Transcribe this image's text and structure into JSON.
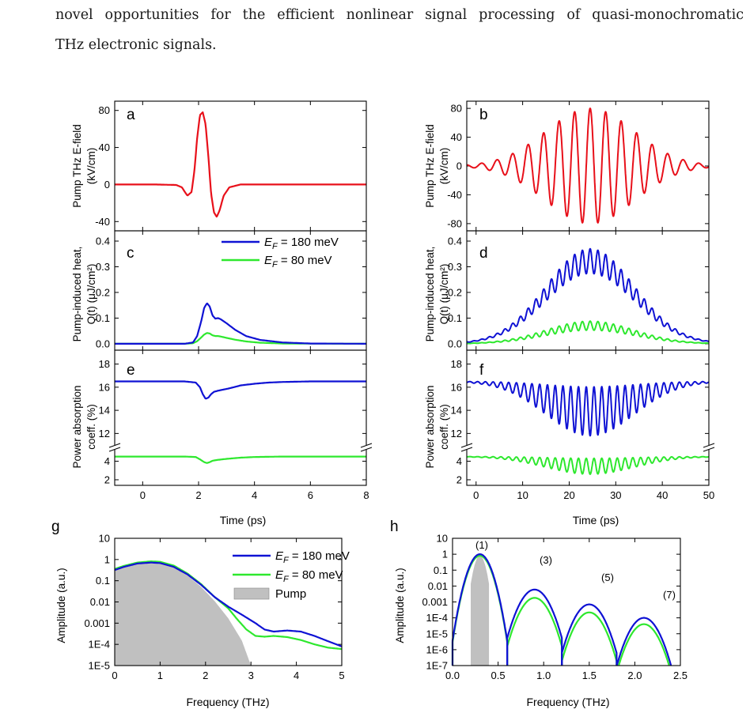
{
  "paper": {
    "line1": "novel opportunities for the efficient nonlinear signal processing of quasi-monochromatic",
    "line2": "THz electronic signals."
  },
  "colors": {
    "pump": "#e8101a",
    "ef180": "#0f12d4",
    "ef80": "#2ee82e",
    "pump_spectrum": "#c0c0c0"
  },
  "chart_data": [
    {
      "panel": "a",
      "type": "line",
      "xlabel": "",
      "ylabel": "Pump THz E-field (kV/cm)",
      "xlim": [
        -1,
        8
      ],
      "ylim": [
        -50,
        90
      ],
      "yticks": [
        80,
        40,
        0,
        -40
      ],
      "series": [
        {
          "color": "#e8101a",
          "x": [
            -1,
            0.5,
            1.2,
            1.4,
            1.6,
            1.75,
            1.85,
            1.95,
            2.05,
            2.15,
            2.25,
            2.35,
            2.45,
            2.55,
            2.65,
            2.75,
            2.9,
            3.1,
            3.5,
            8
          ],
          "y": [
            0,
            0,
            -0.5,
            -3,
            -12,
            -8,
            15,
            50,
            75,
            78,
            65,
            30,
            -10,
            -30,
            -35,
            -28,
            -12,
            -3,
            0,
            0
          ]
        }
      ]
    },
    {
      "panel": "b",
      "type": "line",
      "xlabel": "",
      "ylabel": "Pump THz E-field (kV/cm)",
      "xlim": [
        -2,
        50
      ],
      "ylim": [
        -90,
        90
      ],
      "yticks": [
        80,
        40,
        0,
        -40,
        -80
      ],
      "carrier_period_ps": 3.333,
      "envelope_peak_kVcm": 80,
      "envelope_center_ps": 24.5,
      "envelope_sigma_ps": 9.5,
      "series": [
        {
          "color": "#e8101a"
        }
      ]
    },
    {
      "panel": "c",
      "type": "line",
      "xlabel": "",
      "ylabel": "Pump-induced heat, Q(t) (μJ/cm²)",
      "xlim": [
        -1,
        8
      ],
      "ylim": [
        -0.025,
        0.44
      ],
      "yticks": [
        0.4,
        0.3,
        0.2,
        0.1,
        0.0
      ],
      "legend": [
        "E_F = 180 meV",
        "E_F = 80 meV"
      ],
      "series": [
        {
          "name": "E_F = 180 meV",
          "color": "#0f12d4",
          "x": [
            -1,
            1.5,
            1.8,
            1.95,
            2.1,
            2.2,
            2.3,
            2.4,
            2.5,
            2.6,
            2.7,
            2.8,
            3.0,
            3.3,
            3.7,
            4.2,
            5.0,
            6.0,
            8
          ],
          "y": [
            0,
            0,
            0.005,
            0.03,
            0.09,
            0.14,
            0.158,
            0.145,
            0.11,
            0.098,
            0.1,
            0.095,
            0.08,
            0.055,
            0.03,
            0.015,
            0.005,
            0.001,
            0
          ]
        },
        {
          "name": "E_F = 80 meV",
          "color": "#2ee82e",
          "x": [
            -1,
            1.5,
            1.8,
            1.95,
            2.1,
            2.2,
            2.3,
            2.4,
            2.5,
            2.6,
            2.7,
            2.8,
            3.0,
            3.3,
            3.7,
            4.2,
            5.0,
            8
          ],
          "y": [
            0,
            0,
            0.002,
            0.01,
            0.025,
            0.036,
            0.042,
            0.04,
            0.033,
            0.03,
            0.03,
            0.028,
            0.023,
            0.016,
            0.009,
            0.004,
            0.001,
            0
          ]
        }
      ]
    },
    {
      "panel": "d",
      "type": "line",
      "xlabel": "",
      "ylabel": "Pump-induced heat, Q(t) (μJ/cm²)",
      "xlim": [
        -2,
        50
      ],
      "ylim": [
        -0.025,
        0.44
      ],
      "yticks": [
        0.4,
        0.3,
        0.2,
        0.1,
        0.0
      ],
      "series": [
        {
          "name": "E_F = 180 meV",
          "color": "#0f12d4",
          "peak": 0.37,
          "base_fraction": 0.87,
          "ripple_period_ps": 1.667
        },
        {
          "name": "E_F = 80 meV",
          "color": "#2ee82e",
          "peak": 0.088,
          "base_fraction": 0.8,
          "ripple_period_ps": 1.667
        }
      ]
    },
    {
      "panel": "e",
      "type": "line",
      "xlabel": "Time (ps)",
      "ylabel": "Power absorption coeff. (%)",
      "xlim": [
        -1,
        8
      ],
      "broken_axis": true,
      "yticks": [
        18,
        16,
        14,
        12,
        4,
        2
      ],
      "xticks": [
        0,
        2,
        4,
        6,
        8
      ],
      "series": [
        {
          "name": "E_F = 180 meV",
          "color": "#0f12d4",
          "x": [
            -1,
            1.5,
            1.9,
            2.05,
            2.15,
            2.25,
            2.35,
            2.45,
            2.55,
            2.7,
            2.9,
            3.1,
            3.5,
            4.0,
            4.5,
            5.0,
            6.0,
            8
          ],
          "y": [
            16.5,
            16.5,
            16.4,
            16.0,
            15.4,
            15.0,
            15.1,
            15.4,
            15.6,
            15.7,
            15.8,
            15.9,
            16.15,
            16.3,
            16.4,
            16.45,
            16.5,
            16.5
          ]
        },
        {
          "name": "E_F = 80 meV",
          "color": "#2ee82e",
          "x": [
            -1,
            1.5,
            1.9,
            2.05,
            2.2,
            2.3,
            2.4,
            2.5,
            2.7,
            3.0,
            3.5,
            4.0,
            5.0,
            8
          ],
          "y": [
            4.5,
            4.5,
            4.45,
            4.2,
            3.9,
            3.8,
            3.9,
            4.05,
            4.15,
            4.25,
            4.38,
            4.45,
            4.5,
            4.5
          ]
        }
      ]
    },
    {
      "panel": "f",
      "type": "line",
      "xlabel": "Time (ps)",
      "ylabel": "Power absorption coeff. (%)",
      "xlim": [
        -2,
        50
      ],
      "broken_axis": true,
      "yticks": [
        18,
        16,
        14,
        12,
        4,
        2
      ],
      "xticks": [
        0,
        10,
        20,
        30,
        40,
        50
      ],
      "series": [
        {
          "name": "E_F = 180 meV",
          "color": "#0f12d4",
          "baseline": 16.5,
          "min": 11.8
        },
        {
          "name": "E_F = 80 meV",
          "color": "#2ee82e",
          "baseline": 4.5,
          "min": 2.6
        }
      ]
    },
    {
      "panel": "g",
      "type": "line",
      "xlabel": "Frequency (THz)",
      "ylabel": "Amplitude (a.u.)",
      "yscale": "log",
      "xlim": [
        0,
        5
      ],
      "ylim": [
        1e-05,
        10
      ],
      "xticks": [
        0,
        1,
        2,
        3,
        4,
        5
      ],
      "yticks": [
        "10",
        "1",
        "0.1",
        "0.01",
        "0.001",
        "1E-4",
        "1E-5"
      ],
      "legend": [
        "E_F = 180 meV",
        "E_F = 80 meV",
        "Pump"
      ],
      "series": [
        {
          "name": "E_F = 180 meV",
          "color": "#0f12d4",
          "x": [
            0,
            0.2,
            0.5,
            0.8,
            1.0,
            1.3,
            1.6,
            1.9,
            2.2,
            2.5,
            2.8,
            3.1,
            3.3,
            3.5,
            3.8,
            4.1,
            4.4,
            4.7,
            5.0
          ],
          "y": [
            0.32,
            0.45,
            0.65,
            0.72,
            0.68,
            0.45,
            0.2,
            0.065,
            0.017,
            0.006,
            0.0025,
            0.001,
            0.0005,
            0.0004,
            0.00045,
            0.0004,
            0.00025,
            0.00014,
            8e-05
          ]
        },
        {
          "name": "E_F = 80 meV",
          "color": "#2ee82e",
          "x": [
            0,
            0.2,
            0.5,
            0.8,
            1.0,
            1.3,
            1.6,
            1.9,
            2.2,
            2.5,
            2.7,
            2.9,
            3.1,
            3.3,
            3.5,
            3.8,
            4.1,
            4.4,
            4.7,
            5.0
          ],
          "y": [
            0.36,
            0.5,
            0.72,
            0.82,
            0.78,
            0.52,
            0.22,
            0.07,
            0.017,
            0.005,
            0.0015,
            0.0005,
            0.00025,
            0.00023,
            0.00025,
            0.00022,
            0.00016,
            0.0001,
            7e-05,
            6e-05
          ]
        },
        {
          "name": "Pump",
          "color": "#c0c0c0",
          "fill": true,
          "x": [
            0,
            0.2,
            0.5,
            0.8,
            1.0,
            1.3,
            1.6,
            1.9,
            2.2,
            2.5,
            2.8,
            3.0
          ],
          "y": [
            0.3,
            0.42,
            0.62,
            0.7,
            0.65,
            0.42,
            0.18,
            0.052,
            0.011,
            0.0017,
            0.00015,
            1e-05
          ]
        }
      ]
    },
    {
      "panel": "h",
      "type": "line",
      "xlabel": "Frequency (THz)",
      "ylabel": "Amplitude (a.u.)",
      "yscale": "log",
      "xlim": [
        0,
        2.5
      ],
      "ylim": [
        1e-07,
        10
      ],
      "xticks": [
        "0.0",
        "0.5",
        "1.0",
        "1.5",
        "2.0",
        "2.5"
      ],
      "yticks": [
        "10",
        "1",
        "0.1",
        "0.01",
        "0.001",
        "1E-4",
        "1E-5",
        "1E-6",
        "1E-7"
      ],
      "annotations": [
        "(1)",
        "(3)",
        "(5)",
        "(7)"
      ],
      "harmonic_centers_THz": [
        0.3,
        0.9,
        1.5,
        2.1
      ],
      "peaks_180": [
        1.0,
        0.006,
        0.0007,
        0.0001
      ],
      "peaks_80": [
        0.8,
        0.0018,
        0.00022,
        4e-05
      ],
      "series": [
        {
          "name": "E_F = 180 meV",
          "color": "#0f12d4"
        },
        {
          "name": "E_F = 80 meV",
          "color": "#2ee82e"
        },
        {
          "name": "Pump",
          "color": "#c0c0c0",
          "fill": true
        }
      ]
    }
  ],
  "labels": {
    "panel_a": "a",
    "panel_b": "b",
    "panel_c": "c",
    "panel_d": "d",
    "panel_e": "e",
    "panel_f": "f",
    "panel_g": "g",
    "panel_h": "h",
    "ylab_ab_1": "Pump THz E-field",
    "ylab_ab_2": "(kV/cm)",
    "ylab_cd_1": "Pump-induced heat,",
    "ylab_cd_2": "Q(t) (μJ/cm²)",
    "ylab_ef_1": "Power absorption",
    "ylab_ef_2": "coeff. (%)",
    "ylab_gh": "Amplitude (a.u.)",
    "xlab_time": "Time (ps)",
    "xlab_freq": "Frequency (THz)",
    "leg_ef_sym": "E",
    "leg_ef_sub": "F",
    "leg_180_rest": " = 180 meV",
    "leg_80_rest": " = 80 meV",
    "leg_pump": "Pump",
    "ann_1": "(1)",
    "ann_3": "(3)",
    "ann_5": "(5)",
    "ann_7": "(7)"
  }
}
